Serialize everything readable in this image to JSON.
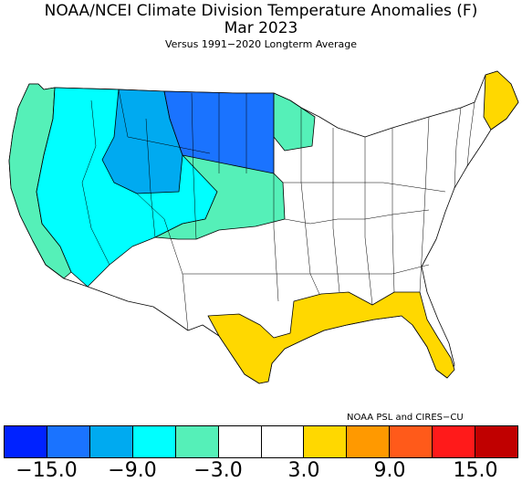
{
  "title": "NOAA/NCEI Climate Division Temperature Anomalies (F)",
  "period": "Mar 2023",
  "subtitle": "Versus 1991−2020 Longterm Average",
  "credit": "NOAA PSL and CIRES−CU",
  "legend": {
    "colors": [
      "#0022ff",
      "#1a73ff",
      "#00aaf0",
      "#00ffff",
      "#55f0b8",
      "#ffffff",
      "#ffffff",
      "#ffd800",
      "#ff9900",
      "#ff5a1a",
      "#ff1a1a",
      "#c00000"
    ],
    "ticks": [
      {
        "label": "−15.0",
        "value": -15.0
      },
      {
        "label": "−9.0",
        "value": -9.0
      },
      {
        "label": "−3.0",
        "value": -3.0
      },
      {
        "label": "3.0",
        "value": 3.0
      },
      {
        "label": "9.0",
        "value": 9.0
      },
      {
        "label": "15.0",
        "value": 15.0
      }
    ],
    "range": [
      -18,
      18
    ]
  },
  "regions": [
    {
      "name": "west-coast",
      "color": "#55f0b8"
    },
    {
      "name": "great-basin-rockies",
      "color": "#00ffff"
    },
    {
      "name": "idaho-wyoming-cold",
      "color": "#00aaf0"
    },
    {
      "name": "northern-plains",
      "color": "#1a73ff"
    },
    {
      "name": "central-plains",
      "color": "#55f0b8"
    },
    {
      "name": "gulf-coast",
      "color": "#ffd800"
    },
    {
      "name": "maine",
      "color": "#ffd800"
    }
  ]
}
